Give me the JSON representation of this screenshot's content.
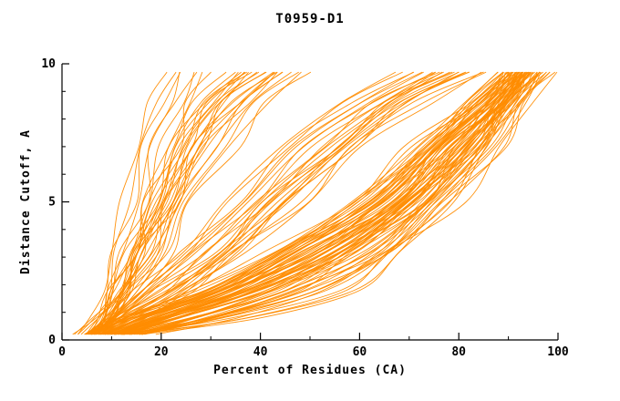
{
  "chart_data": {
    "type": "line",
    "title": "T0959-D1",
    "xlabel": "Percent of Residues (CA)",
    "ylabel": "Distance Cutoff, A",
    "xlim": [
      0,
      100
    ],
    "ylim": [
      0,
      10
    ],
    "x_ticks": [
      0,
      20,
      40,
      60,
      80,
      100
    ],
    "x_minor_ticks": [
      10,
      30,
      50,
      70,
      90
    ],
    "y_ticks": [
      0,
      5,
      10
    ],
    "y_minor_ticks": [
      1,
      2,
      3,
      4,
      6,
      7,
      8,
      9
    ],
    "line_color": "#ff8c00",
    "axis_color": "#000000",
    "background": "#ffffff",
    "legend": "none",
    "grid": false,
    "y_levels": [
      0.2,
      0.8,
      1.8,
      3.2,
      5.0,
      7.0,
      8.6,
      9.7
    ],
    "curves": [
      [
        7,
        14,
        30,
        46,
        62,
        74,
        84,
        89
      ],
      [
        8,
        16,
        33,
        49,
        64,
        76,
        85,
        90
      ],
      [
        6,
        13,
        28,
        44,
        60,
        72,
        83,
        88
      ],
      [
        9,
        18,
        35,
        51,
        66,
        78,
        86,
        91
      ],
      [
        10,
        20,
        37,
        53,
        68,
        79,
        87,
        92
      ],
      [
        7,
        15,
        31,
        47,
        63,
        75,
        85,
        90
      ],
      [
        8,
        17,
        34,
        50,
        65,
        77,
        86,
        91
      ],
      [
        11,
        22,
        39,
        55,
        70,
        81,
        88,
        93
      ],
      [
        6,
        12,
        27,
        43,
        59,
        71,
        82,
        88
      ],
      [
        9,
        19,
        36,
        52,
        67,
        78,
        87,
        92
      ],
      [
        12,
        24,
        41,
        57,
        71,
        82,
        89,
        94
      ],
      [
        7,
        14,
        29,
        45,
        61,
        73,
        84,
        89
      ],
      [
        8,
        16,
        32,
        48,
        64,
        76,
        85,
        91
      ],
      [
        10,
        21,
        38,
        54,
        69,
        80,
        88,
        93
      ],
      [
        6,
        13,
        28,
        44,
        60,
        73,
        83,
        89
      ],
      [
        9,
        18,
        34,
        50,
        66,
        77,
        86,
        92
      ],
      [
        11,
        23,
        40,
        56,
        70,
        81,
        89,
        94
      ],
      [
        7,
        15,
        30,
        46,
        62,
        74,
        84,
        90
      ],
      [
        13,
        25,
        42,
        58,
        72,
        83,
        90,
        95
      ],
      [
        8,
        17,
        33,
        49,
        65,
        76,
        86,
        91
      ],
      [
        10,
        20,
        37,
        53,
        68,
        79,
        87,
        93
      ],
      [
        6,
        12,
        26,
        42,
        58,
        70,
        82,
        88
      ],
      [
        9,
        19,
        35,
        51,
        67,
        78,
        87,
        92
      ],
      [
        12,
        24,
        41,
        57,
        71,
        82,
        89,
        94
      ],
      [
        7,
        14,
        29,
        45,
        61,
        74,
        84,
        90
      ],
      [
        14,
        27,
        44,
        60,
        74,
        84,
        91,
        96
      ],
      [
        8,
        16,
        31,
        47,
        63,
        75,
        85,
        91
      ],
      [
        10,
        21,
        38,
        54,
        69,
        80,
        88,
        93
      ],
      [
        15,
        29,
        46,
        62,
        75,
        85,
        92,
        97
      ],
      [
        11,
        22,
        39,
        55,
        70,
        81,
        89,
        94
      ],
      [
        5,
        10,
        18,
        28,
        38,
        50,
        62,
        74
      ],
      [
        6,
        11,
        20,
        30,
        41,
        53,
        65,
        77
      ],
      [
        7,
        13,
        22,
        33,
        44,
        56,
        68,
        80
      ],
      [
        5,
        9,
        16,
        25,
        35,
        46,
        58,
        70
      ],
      [
        6,
        12,
        21,
        31,
        42,
        54,
        66,
        78
      ],
      [
        8,
        14,
        24,
        35,
        46,
        58,
        70,
        82
      ],
      [
        5,
        10,
        17,
        26,
        36,
        48,
        60,
        72
      ],
      [
        7,
        13,
        23,
        34,
        45,
        57,
        69,
        81
      ],
      [
        6,
        11,
        19,
        29,
        40,
        52,
        64,
        76
      ],
      [
        8,
        15,
        25,
        36,
        48,
        60,
        72,
        84
      ],
      [
        5,
        9,
        15,
        24,
        33,
        44,
        56,
        68
      ],
      [
        7,
        12,
        21,
        32,
        43,
        55,
        67,
        79
      ],
      [
        4,
        7,
        10,
        13,
        16,
        19,
        22,
        26
      ],
      [
        5,
        8,
        11,
        14,
        17,
        21,
        25,
        30
      ],
      [
        4,
        7,
        10,
        14,
        18,
        22,
        27,
        33
      ],
      [
        5,
        8,
        12,
        15,
        19,
        24,
        29,
        36
      ],
      [
        6,
        9,
        13,
        17,
        21,
        26,
        32,
        39
      ],
      [
        4,
        8,
        11,
        15,
        20,
        25,
        31,
        38
      ],
      [
        5,
        9,
        12,
        16,
        21,
        27,
        34,
        42
      ],
      [
        6,
        10,
        14,
        18,
        23,
        29,
        36,
        44
      ],
      [
        4,
        7,
        11,
        15,
        19,
        24,
        30,
        37
      ],
      [
        5,
        9,
        13,
        17,
        22,
        28,
        35,
        43
      ],
      [
        6,
        10,
        14,
        19,
        24,
        31,
        38,
        47
      ],
      [
        5,
        8,
        12,
        16,
        21,
        27,
        33,
        41
      ],
      [
        4,
        7,
        10,
        14,
        18,
        23,
        28,
        35
      ],
      [
        6,
        11,
        15,
        20,
        26,
        33,
        41,
        50
      ],
      [
        4,
        6,
        8,
        10,
        12,
        15,
        18,
        21
      ],
      [
        5,
        7,
        9,
        11,
        14,
        17,
        20,
        23
      ],
      [
        16,
        31,
        48,
        64,
        77,
        87,
        93,
        98
      ],
      [
        18,
        33,
        50,
        66,
        79,
        88,
        94,
        99
      ],
      [
        10,
        25,
        45,
        58,
        70,
        80,
        88,
        93
      ],
      [
        12,
        30,
        50,
        62,
        73,
        82,
        89,
        94
      ],
      [
        14,
        35,
        55,
        66,
        76,
        84,
        90,
        95
      ],
      [
        11,
        28,
        48,
        60,
        72,
        81,
        88,
        93
      ],
      [
        13,
        32,
        52,
        64,
        74,
        83,
        90,
        95
      ],
      [
        15,
        38,
        58,
        68,
        77,
        85,
        91,
        96
      ]
    ],
    "render_passes": 2,
    "pass_offset": 1.2
  }
}
